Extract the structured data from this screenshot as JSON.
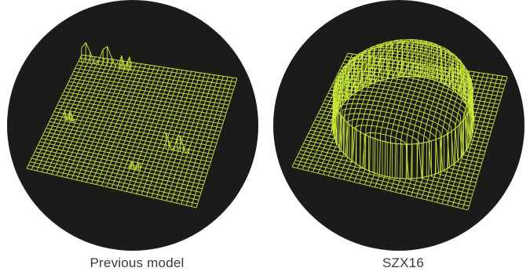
{
  "figure": {
    "mesh_color": "#c8e83a",
    "background_color": "#1c1b1a",
    "panels": [
      {
        "caption": "Previous model",
        "surface": "flat-with-irregular-edge-artifacts"
      },
      {
        "caption": "SZX16",
        "surface": "smooth-dome"
      }
    ]
  }
}
